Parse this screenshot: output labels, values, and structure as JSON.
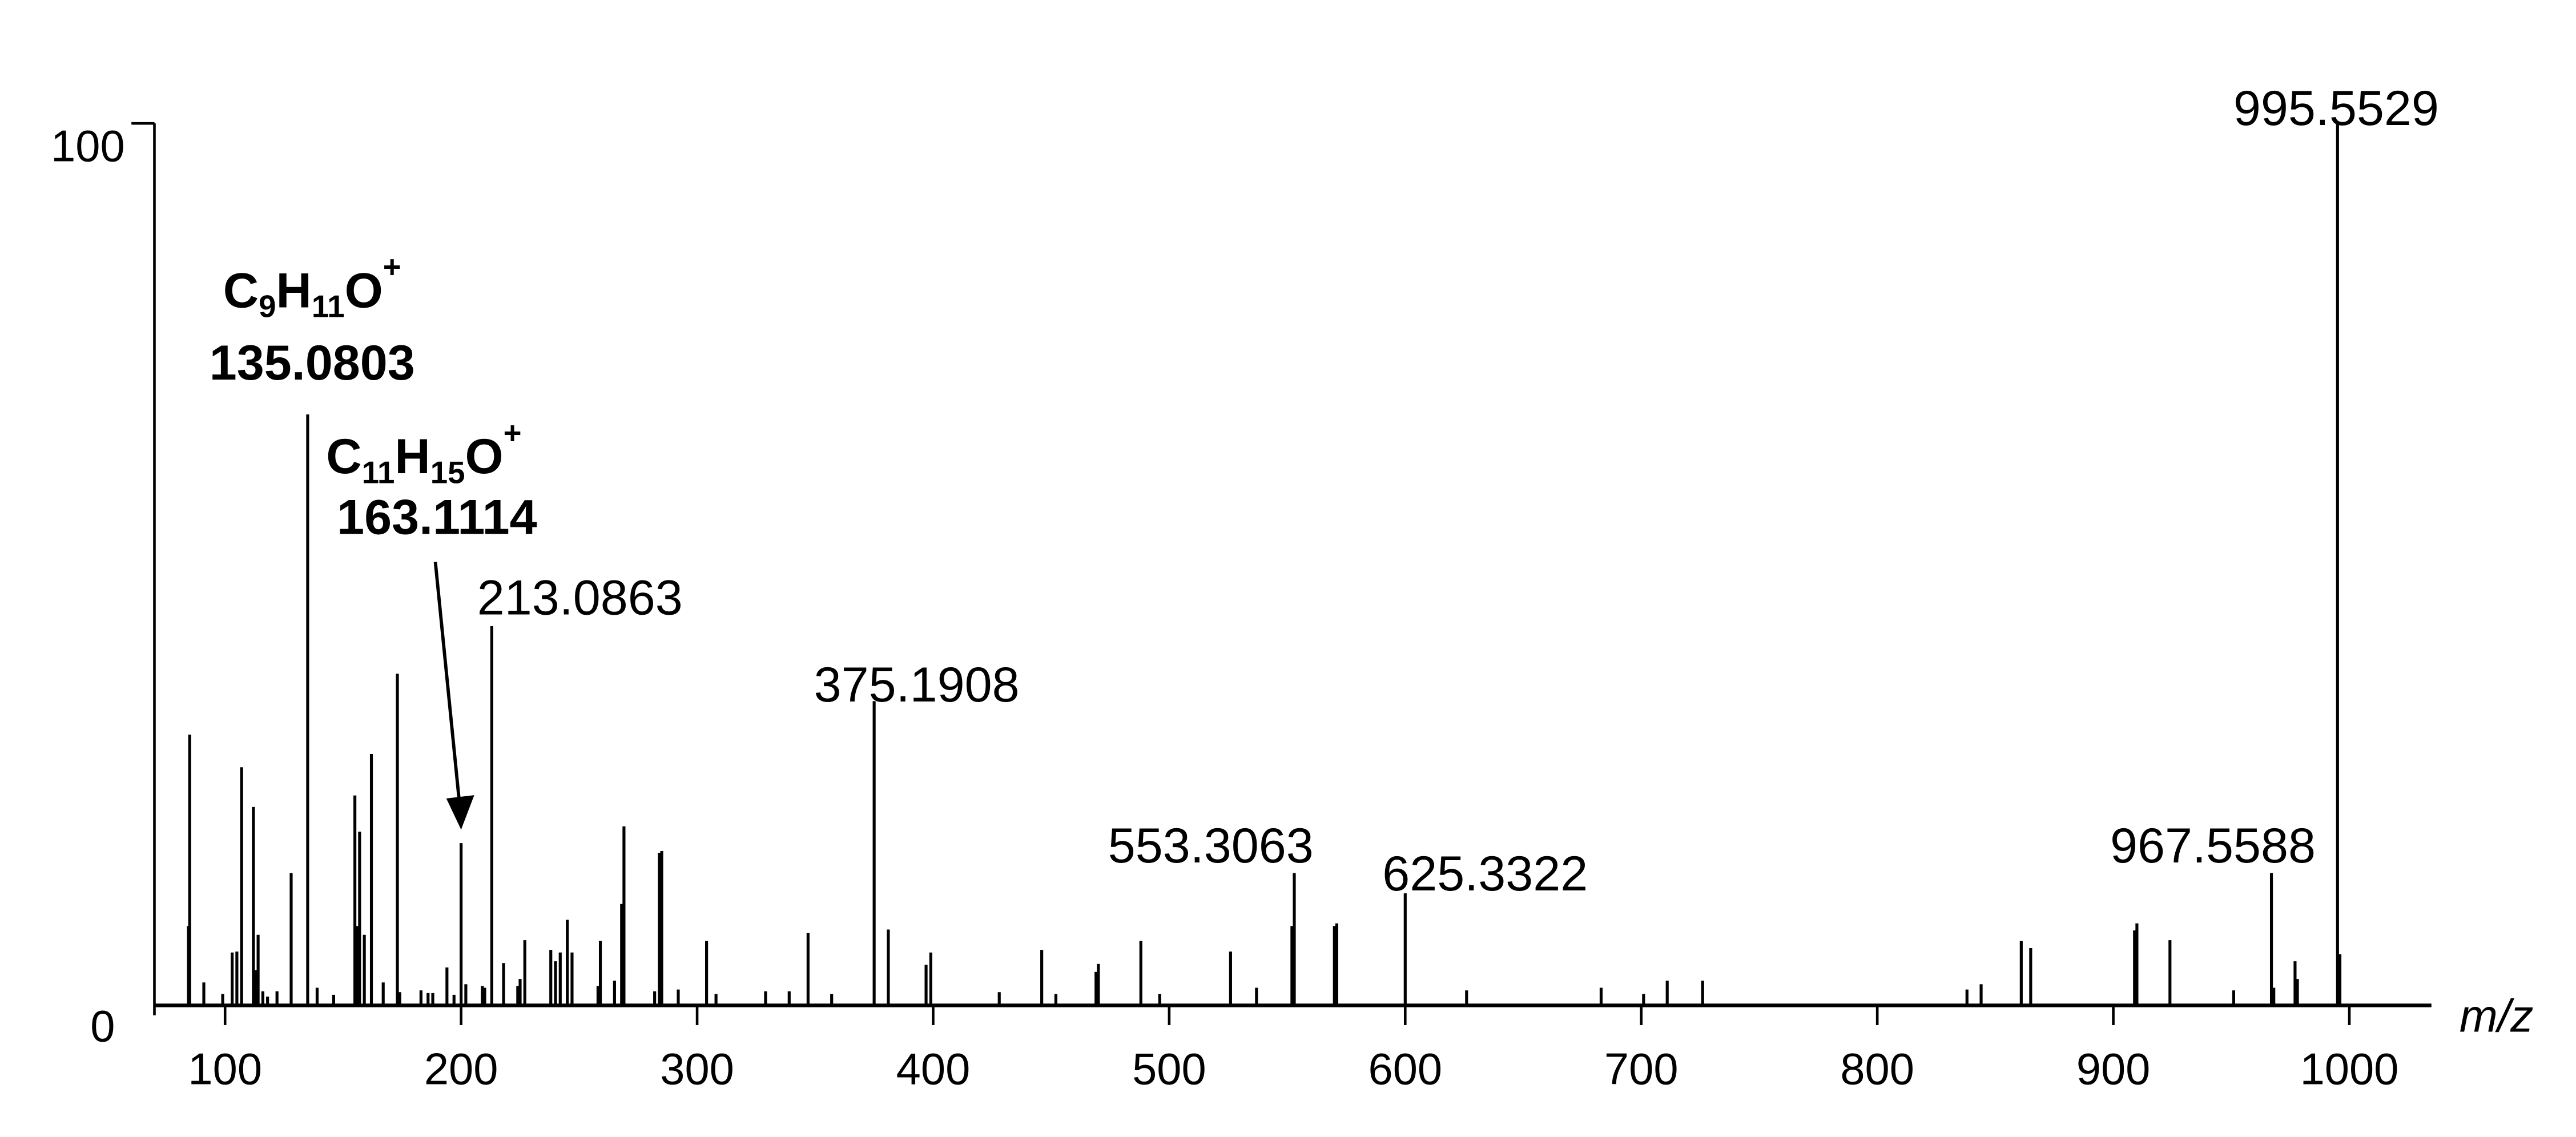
{
  "chart_data": {
    "type": "bar",
    "title": "",
    "xlabel": "m/z",
    "ylabel": "",
    "xlim": [
      70,
      1031
    ],
    "ylim": [
      0,
      100
    ],
    "grid": false,
    "x_ticks": [
      "100",
      "200",
      "300",
      "400",
      "500",
      "600",
      "700",
      "800",
      "900",
      "1000"
    ],
    "y_ticks": [
      "0",
      "100"
    ],
    "color": "#000000",
    "peaks": [
      {
        "mz": 84.5,
        "intensity": 9
      },
      {
        "mz": 85,
        "intensity": 30.7
      },
      {
        "mz": 91,
        "intensity": 2.6
      },
      {
        "mz": 99,
        "intensity": 1.3
      },
      {
        "mz": 103,
        "intensity": 6
      },
      {
        "mz": 105,
        "intensity": 6.1
      },
      {
        "mz": 107,
        "intensity": 27
      },
      {
        "mz": 112,
        "intensity": 22.5
      },
      {
        "mz": 113,
        "intensity": 4
      },
      {
        "mz": 114,
        "intensity": 8
      },
      {
        "mz": 116,
        "intensity": 1.6
      },
      {
        "mz": 118,
        "intensity": 1
      },
      {
        "mz": 122,
        "intensity": 1.6
      },
      {
        "mz": 128,
        "intensity": 15
      },
      {
        "mz": 135,
        "intensity": 67
      },
      {
        "mz": 139,
        "intensity": 2
      },
      {
        "mz": 146,
        "intensity": 1.2
      },
      {
        "mz": 155,
        "intensity": 23.8
      },
      {
        "mz": 156,
        "intensity": 9
      },
      {
        "mz": 157,
        "intensity": 19.7
      },
      {
        "mz": 159,
        "intensity": 8
      },
      {
        "mz": 162,
        "intensity": 28.5
      },
      {
        "mz": 167,
        "intensity": 2.6
      },
      {
        "mz": 173,
        "intensity": 37.6
      },
      {
        "mz": 174,
        "intensity": 1.5
      },
      {
        "mz": 183,
        "intensity": 1.7
      },
      {
        "mz": 186,
        "intensity": 1.4
      },
      {
        "mz": 188,
        "intensity": 1.4
      },
      {
        "mz": 194,
        "intensity": 4.3
      },
      {
        "mz": 197,
        "intensity": 1.2
      },
      {
        "mz": 200,
        "intensity": 18.4
      },
      {
        "mz": 202,
        "intensity": 2.4
      },
      {
        "mz": 209,
        "intensity": 2.2
      },
      {
        "mz": 210,
        "intensity": 2
      },
      {
        "mz": 213,
        "intensity": 43
      },
      {
        "mz": 218,
        "intensity": 4.8
      },
      {
        "mz": 224,
        "intensity": 2.2
      },
      {
        "mz": 225,
        "intensity": 3
      },
      {
        "mz": 227,
        "intensity": 7.4
      },
      {
        "mz": 238,
        "intensity": 6.3
      },
      {
        "mz": 240,
        "intensity": 5
      },
      {
        "mz": 242,
        "intensity": 6
      },
      {
        "mz": 245,
        "intensity": 9.7
      },
      {
        "mz": 247,
        "intensity": 6
      },
      {
        "mz": 258,
        "intensity": 2.2
      },
      {
        "mz": 259,
        "intensity": 7.3
      },
      {
        "mz": 265,
        "intensity": 2.8
      },
      {
        "mz": 268,
        "intensity": 11.5
      },
      {
        "mz": 269,
        "intensity": 20.3
      },
      {
        "mz": 282,
        "intensity": 1.6
      },
      {
        "mz": 284,
        "intensity": 17.3
      },
      {
        "mz": 285,
        "intensity": 17.5
      },
      {
        "mz": 292,
        "intensity": 1.8
      },
      {
        "mz": 304,
        "intensity": 7.3
      },
      {
        "mz": 308,
        "intensity": 1.3
      },
      {
        "mz": 329,
        "intensity": 1.6
      },
      {
        "mz": 339,
        "intensity": 1.6
      },
      {
        "mz": 347,
        "intensity": 8.2
      },
      {
        "mz": 357,
        "intensity": 1.3
      },
      {
        "mz": 375,
        "intensity": 34.5
      },
      {
        "mz": 381,
        "intensity": 8.6
      },
      {
        "mz": 397,
        "intensity": 4.6
      },
      {
        "mz": 399,
        "intensity": 6
      },
      {
        "mz": 428,
        "intensity": 1.5
      },
      {
        "mz": 446,
        "intensity": 6.3
      },
      {
        "mz": 452,
        "intensity": 1.3
      },
      {
        "mz": 469,
        "intensity": 3.8
      },
      {
        "mz": 470,
        "intensity": 4.7
      },
      {
        "mz": 488,
        "intensity": 7.3
      },
      {
        "mz": 496,
        "intensity": 1.3
      },
      {
        "mz": 526,
        "intensity": 6.1
      },
      {
        "mz": 537,
        "intensity": 2
      },
      {
        "mz": 552,
        "intensity": 9
      },
      {
        "mz": 553,
        "intensity": 15
      },
      {
        "mz": 570,
        "intensity": 9
      },
      {
        "mz": 571,
        "intensity": 9.3
      },
      {
        "mz": 600,
        "intensity": 12.7
      },
      {
        "mz": 626,
        "intensity": 1.7
      },
      {
        "mz": 683,
        "intensity": 2
      },
      {
        "mz": 701,
        "intensity": 1.3
      },
      {
        "mz": 711,
        "intensity": 2.8
      },
      {
        "mz": 726,
        "intensity": 2.8
      },
      {
        "mz": 838,
        "intensity": 1.8
      },
      {
        "mz": 844,
        "intensity": 2.4
      },
      {
        "mz": 861,
        "intensity": 7.3
      },
      {
        "mz": 865,
        "intensity": 6.5
      },
      {
        "mz": 909,
        "intensity": 8.5
      },
      {
        "mz": 910,
        "intensity": 9.3
      },
      {
        "mz": 924,
        "intensity": 7.4
      },
      {
        "mz": 951,
        "intensity": 1.7
      },
      {
        "mz": 967,
        "intensity": 15
      },
      {
        "mz": 968,
        "intensity": 2
      },
      {
        "mz": 977,
        "intensity": 5
      },
      {
        "mz": 978,
        "intensity": 3
      },
      {
        "mz": 995,
        "intensity": 100
      },
      {
        "mz": 996,
        "intensity": 5.8
      }
    ],
    "annotations": [
      {
        "mz": 995.5529,
        "text": "995.5529",
        "bold": false
      },
      {
        "mz": 967.5588,
        "text": "967.5588",
        "bold": false
      },
      {
        "mz": 625.3322,
        "text": "625.3322",
        "bold": false
      },
      {
        "mz": 553.3063,
        "text": "553.3063",
        "bold": false
      },
      {
        "mz": 375.1908,
        "text": "375.1908",
        "bold": false
      },
      {
        "mz": 213.0863,
        "text": "213.0863",
        "bold": false
      },
      {
        "mz": 135.0803,
        "text": "135.0803",
        "bold": true,
        "formula": {
          "parts": [
            [
              "C",
              ""
            ],
            [
              "9",
              "sub"
            ],
            [
              "H",
              ""
            ],
            [
              "11",
              "sub"
            ],
            [
              "O",
              ""
            ],
            [
              "+",
              "sup"
            ]
          ]
        }
      },
      {
        "mz": 163.1114,
        "text": "163.1114",
        "bold": true,
        "formula": {
          "parts": [
            [
              "C",
              ""
            ],
            [
              "11",
              "sub"
            ],
            [
              "H",
              ""
            ],
            [
              "15",
              "sub"
            ],
            [
              "O",
              ""
            ],
            [
              "+",
              "sup"
            ]
          ]
        },
        "arrow_to_mz": 200
      }
    ]
  }
}
